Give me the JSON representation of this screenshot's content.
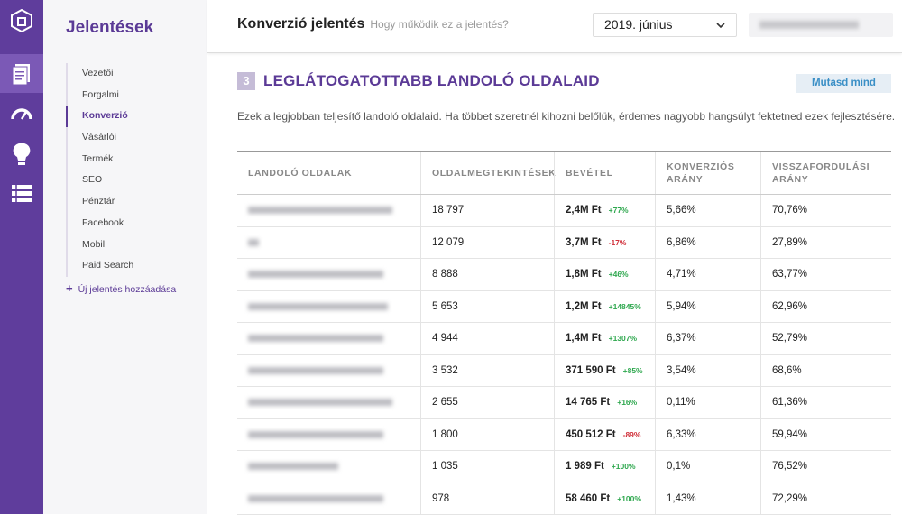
{
  "sidebar": {
    "title": "Jelentések",
    "items": [
      "Vezetői",
      "Forgalmi",
      "Konverzió",
      "Vásárlói",
      "Termék",
      "SEO",
      "Pénztár",
      "Facebook",
      "Mobil",
      "Paid Search"
    ],
    "add_link": "Új jelentés hozzáadása"
  },
  "header": {
    "title": "Konverzió jelentés",
    "help": "Hogy működik ez a jelentés?",
    "period": "2019. június"
  },
  "section": {
    "number": "3",
    "title": "LEGLÁTOGATOTTABB LANDOLÓ OLDALAID",
    "button": "Mutasd mind",
    "description": "Ezek a legjobban teljesítő landoló oldalaid. Ha többet szeretnél kihozni belőlük, érdemes nagyobb hangsúlyt fektetned ezek fejlesztésére."
  },
  "table": {
    "columns": [
      "LANDOLÓ OLDALAK",
      "OLDALMEGTEKINTÉSEK",
      "BEVÉTEL",
      "KONVERZIÓS ARÁNY",
      "VISSZAFORDULÁSI ARÁNY"
    ],
    "rows": [
      [
        "18 797",
        "2,4M Ft",
        "+77%",
        "5,66%",
        "70,76%"
      ],
      [
        "12 079",
        "3,7M Ft",
        "-17%",
        "6,86%",
        "27,89%"
      ],
      [
        "8 888",
        "1,8M Ft",
        "+46%",
        "4,71%",
        "63,77%"
      ],
      [
        "5 653",
        "1,2M Ft",
        "+14845%",
        "5,94%",
        "62,96%"
      ],
      [
        "4 944",
        "1,4M Ft",
        "+1307%",
        "6,37%",
        "52,79%"
      ],
      [
        "3 532",
        "371 590 Ft",
        "+85%",
        "3,54%",
        "68,6%"
      ],
      [
        "2 655",
        "14 765 Ft",
        "+16%",
        "0,11%",
        "61,36%"
      ],
      [
        "1 800",
        "450 512 Ft",
        "-89%",
        "6,33%",
        "59,94%"
      ],
      [
        "1 035",
        "1 989 Ft",
        "+100%",
        "0,1%",
        "76,52%"
      ],
      [
        "978",
        "58 460 Ft",
        "+100%",
        "1,43%",
        "72,29%"
      ]
    ]
  }
}
